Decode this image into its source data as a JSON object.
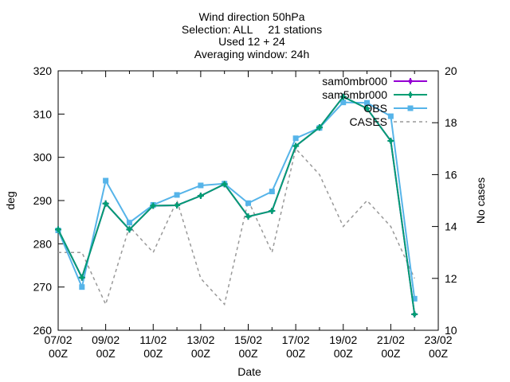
{
  "chart_data": {
    "type": "line",
    "title_lines": [
      "Wind direction 50hPa",
      "Selection: ALL     21 stations",
      "Used 12 + 24",
      "Averaging window: 24h"
    ],
    "xlabel": "Date",
    "ylabel": "deg",
    "y2label": "No cases",
    "x_ticks": [
      {
        "day": 0,
        "line1": "07/02",
        "line2": "00Z"
      },
      {
        "day": 2,
        "line1": "09/02",
        "line2": "00Z"
      },
      {
        "day": 4,
        "line1": "11/02",
        "line2": "00Z"
      },
      {
        "day": 6,
        "line1": "13/02",
        "line2": "00Z"
      },
      {
        "day": 8,
        "line1": "15/02",
        "line2": "00Z"
      },
      {
        "day": 10,
        "line1": "17/02",
        "line2": "00Z"
      },
      {
        "day": 12,
        "line1": "19/02",
        "line2": "00Z"
      },
      {
        "day": 14,
        "line1": "21/02",
        "line2": "00Z"
      },
      {
        "day": 16,
        "line1": "23/02",
        "line2": "00Z"
      }
    ],
    "xlim_days": [
      0,
      16
    ],
    "ylim": [
      260,
      320
    ],
    "y_ticks": [
      260,
      270,
      280,
      290,
      300,
      310,
      320
    ],
    "y2lim": [
      10,
      20
    ],
    "y2_ticks": [
      10,
      12,
      14,
      16,
      18,
      20
    ],
    "x_days": [
      0,
      1,
      2,
      3,
      4,
      5,
      6,
      7,
      8,
      9,
      10,
      11,
      12,
      13,
      14,
      15
    ],
    "series": [
      {
        "name": "sam0mbr000",
        "axis": "left",
        "color": "#9400d3",
        "dash": false,
        "marker": "plus",
        "values": [
          283.3,
          272.2,
          289.3,
          283.3,
          288.8,
          288.9,
          291.1,
          293.8,
          286.3,
          287.6,
          302.6,
          306.9,
          314.0,
          311.3,
          303.8,
          263.7
        ]
      },
      {
        "name": "sam5mbr000",
        "axis": "left",
        "color": "#009e73",
        "dash": false,
        "marker": "plus",
        "values": [
          283.3,
          272.2,
          289.3,
          283.3,
          288.8,
          288.9,
          291.1,
          293.8,
          286.3,
          287.6,
          302.6,
          306.9,
          314.0,
          311.3,
          303.8,
          263.7
        ]
      },
      {
        "name": "OBS",
        "axis": "left",
        "color": "#56b4e9",
        "dash": false,
        "marker": "square",
        "values": [
          283.1,
          270.0,
          294.6,
          284.9,
          289.0,
          291.3,
          293.5,
          293.9,
          289.4,
          292.1,
          304.4,
          306.8,
          312.7,
          312.6,
          309.5,
          267.3
        ]
      },
      {
        "name": "CASES",
        "axis": "right",
        "color": "#999999",
        "dash": true,
        "marker": "none",
        "values": [
          13.0,
          13.0,
          11.0,
          14.0,
          13.0,
          15.0,
          12.0,
          11.0,
          15.0,
          13.0,
          17.0,
          16.0,
          14.0,
          15.0,
          14.0,
          12.0
        ]
      }
    ],
    "grid": false,
    "legend_position": "top-right"
  }
}
